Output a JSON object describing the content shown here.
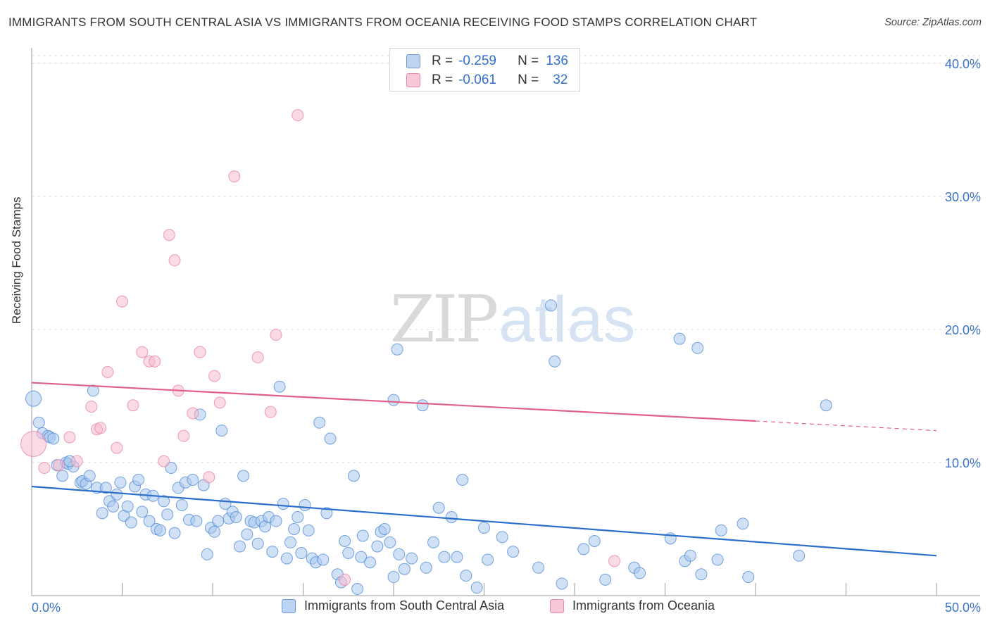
{
  "title": "IMMIGRANTS FROM SOUTH CENTRAL ASIA VS IMMIGRANTS FROM OCEANIA RECEIVING FOOD STAMPS CORRELATION CHART",
  "source": "Source: ZipAtlas.com",
  "watermark": {
    "part1": "ZIP",
    "part2": "atlas"
  },
  "legend": {
    "r_label": "R =",
    "n_label": "N =",
    "blue": {
      "r": "-0.259",
      "n": "136"
    },
    "pink": {
      "r": "-0.061",
      "n": "32"
    }
  },
  "colors": {
    "blue": "#4a86d6",
    "blue_fill": "#a9c8ef",
    "blue_line": "#2a6dcc",
    "pink": "#e87fa0",
    "pink_fill": "#f6bcd0",
    "pink_line": "#e0608a",
    "tick_label": "#3b73c8"
  },
  "chart_data": {
    "type": "scatter",
    "title": "IMMIGRANTS FROM SOUTH CENTRAL ASIA VS IMMIGRANTS FROM OCEANIA RECEIVING FOOD STAMPS CORRELATION CHART",
    "xlabel": "",
    "ylabel": "Receiving Food Stamps",
    "xlim": [
      0,
      50
    ],
    "ylim": [
      0,
      41
    ],
    "x_tick_labels": [
      "0.0%",
      "50.0%"
    ],
    "y_ticks": [
      10,
      20,
      30,
      40
    ],
    "y_tick_labels": [
      "10.0%",
      "20.0%",
      "30.0%",
      "40.0%"
    ],
    "grid": "horizontal dashed",
    "legend_position": "top-center",
    "series": [
      {
        "name": "Immigrants from South Central Asia",
        "color": "blue",
        "trend": {
          "x": [
            0,
            50
          ],
          "y": [
            8.2,
            3.0
          ],
          "dashed_from": null
        },
        "points": [
          [
            0.1,
            14.8
          ],
          [
            0.4,
            13.0
          ],
          [
            0.6,
            12.2
          ],
          [
            0.9,
            12.0
          ],
          [
            1.0,
            11.9
          ],
          [
            1.2,
            11.8
          ],
          [
            1.4,
            9.8
          ],
          [
            1.7,
            9.0
          ],
          [
            1.9,
            10.0
          ],
          [
            2.0,
            9.9
          ],
          [
            2.3,
            9.7
          ],
          [
            2.7,
            8.5
          ],
          [
            2.8,
            8.6
          ],
          [
            3.0,
            8.4
          ],
          [
            3.2,
            9.0
          ],
          [
            3.4,
            15.4
          ],
          [
            3.6,
            8.1
          ],
          [
            3.9,
            6.2
          ],
          [
            4.1,
            8.1
          ],
          [
            4.3,
            7.1
          ],
          [
            4.5,
            6.7
          ],
          [
            4.7,
            7.6
          ],
          [
            4.9,
            8.5
          ],
          [
            5.1,
            6.0
          ],
          [
            5.3,
            6.7
          ],
          [
            5.5,
            5.5
          ],
          [
            5.7,
            8.2
          ],
          [
            5.9,
            8.7
          ],
          [
            6.1,
            6.3
          ],
          [
            6.3,
            7.6
          ],
          [
            6.5,
            5.6
          ],
          [
            6.7,
            7.5
          ],
          [
            6.9,
            5.0
          ],
          [
            7.1,
            4.9
          ],
          [
            7.3,
            7.1
          ],
          [
            7.5,
            6.1
          ],
          [
            7.7,
            9.6
          ],
          [
            7.9,
            4.7
          ],
          [
            8.1,
            8.1
          ],
          [
            8.3,
            6.8
          ],
          [
            8.5,
            8.5
          ],
          [
            8.7,
            5.7
          ],
          [
            8.9,
            8.7
          ],
          [
            9.1,
            5.6
          ],
          [
            9.3,
            13.6
          ],
          [
            9.5,
            8.3
          ],
          [
            9.7,
            3.1
          ],
          [
            9.9,
            5.1
          ],
          [
            10.1,
            4.8
          ],
          [
            10.3,
            5.6
          ],
          [
            10.5,
            12.4
          ],
          [
            10.7,
            6.9
          ],
          [
            10.9,
            5.8
          ],
          [
            11.1,
            6.3
          ],
          [
            11.3,
            5.9
          ],
          [
            11.5,
            3.7
          ],
          [
            11.7,
            9.0
          ],
          [
            11.9,
            4.6
          ],
          [
            12.1,
            5.6
          ],
          [
            12.3,
            5.5
          ],
          [
            12.5,
            3.9
          ],
          [
            12.7,
            5.6
          ],
          [
            12.9,
            5.2
          ],
          [
            13.1,
            5.9
          ],
          [
            13.3,
            3.3
          ],
          [
            13.5,
            5.6
          ],
          [
            13.7,
            15.7
          ],
          [
            13.9,
            6.9
          ],
          [
            14.1,
            2.8
          ],
          [
            14.3,
            4.0
          ],
          [
            14.5,
            5.0
          ],
          [
            14.7,
            5.9
          ],
          [
            14.9,
            3.2
          ],
          [
            15.1,
            6.8
          ],
          [
            15.3,
            4.9
          ],
          [
            15.5,
            2.8
          ],
          [
            15.7,
            2.5
          ],
          [
            15.9,
            13.0
          ],
          [
            16.1,
            2.7
          ],
          [
            16.3,
            6.2
          ],
          [
            16.5,
            11.8
          ],
          [
            16.9,
            1.6
          ],
          [
            17.1,
            1.0
          ],
          [
            17.3,
            4.1
          ],
          [
            17.5,
            3.2
          ],
          [
            17.8,
            9.0
          ],
          [
            18.0,
            0.5
          ],
          [
            18.3,
            4.5
          ],
          [
            18.2,
            2.9
          ],
          [
            18.7,
            2.5
          ],
          [
            19.1,
            3.7
          ],
          [
            19.3,
            4.8
          ],
          [
            19.5,
            5.0
          ],
          [
            19.8,
            4.0
          ],
          [
            20.0,
            14.7
          ],
          [
            20.2,
            18.5
          ],
          [
            20.0,
            1.4
          ],
          [
            20.3,
            3.1
          ],
          [
            20.6,
            2.0
          ],
          [
            21.0,
            2.8
          ],
          [
            21.6,
            14.3
          ],
          [
            21.8,
            2.1
          ],
          [
            22.2,
            4.0
          ],
          [
            22.5,
            6.6
          ],
          [
            22.8,
            2.9
          ],
          [
            23.2,
            5.9
          ],
          [
            23.5,
            2.9
          ],
          [
            23.8,
            8.7
          ],
          [
            24.0,
            1.5
          ],
          [
            24.6,
            0.6
          ],
          [
            25.0,
            5.1
          ],
          [
            25.2,
            2.7
          ],
          [
            26.0,
            4.4
          ],
          [
            26.6,
            3.3
          ],
          [
            28.0,
            2.1
          ],
          [
            28.7,
            21.8
          ],
          [
            28.9,
            17.6
          ],
          [
            29.3,
            0.9
          ],
          [
            30.5,
            3.5
          ],
          [
            31.1,
            4.1
          ],
          [
            31.7,
            1.2
          ],
          [
            33.3,
            2.1
          ],
          [
            33.6,
            1.7
          ],
          [
            35.3,
            4.3
          ],
          [
            35.8,
            19.3
          ],
          [
            36.1,
            2.6
          ],
          [
            36.4,
            3.0
          ],
          [
            36.8,
            18.6
          ],
          [
            37.0,
            1.6
          ],
          [
            37.9,
            2.7
          ],
          [
            38.1,
            4.9
          ],
          [
            39.3,
            5.4
          ],
          [
            39.6,
            1.4
          ],
          [
            42.4,
            3.0
          ],
          [
            43.9,
            14.3
          ],
          [
            2.1,
            10.1
          ]
        ]
      },
      {
        "name": "Immigrants from Oceania",
        "color": "pink",
        "trend": {
          "x": [
            0,
            50
          ],
          "y": [
            16.0,
            12.4
          ],
          "dashed_from": 40.0
        },
        "points": [
          [
            0.1,
            11.4
          ],
          [
            0.7,
            9.6
          ],
          [
            1.5,
            9.8
          ],
          [
            2.1,
            11.9
          ],
          [
            2.5,
            10.1
          ],
          [
            3.3,
            14.2
          ],
          [
            3.6,
            12.5
          ],
          [
            3.8,
            12.6
          ],
          [
            4.2,
            16.8
          ],
          [
            4.7,
            11.1
          ],
          [
            5.0,
            22.1
          ],
          [
            5.6,
            14.3
          ],
          [
            6.1,
            18.3
          ],
          [
            6.5,
            17.6
          ],
          [
            6.8,
            17.6
          ],
          [
            7.3,
            10.1
          ],
          [
            7.6,
            27.1
          ],
          [
            7.9,
            25.2
          ],
          [
            8.1,
            15.4
          ],
          [
            8.4,
            12.0
          ],
          [
            8.9,
            13.7
          ],
          [
            9.3,
            18.3
          ],
          [
            9.8,
            8.9
          ],
          [
            10.1,
            16.5
          ],
          [
            10.4,
            14.5
          ],
          [
            11.2,
            31.5
          ],
          [
            12.5,
            17.9
          ],
          [
            13.2,
            13.8
          ],
          [
            13.5,
            19.6
          ],
          [
            14.7,
            36.1
          ],
          [
            17.3,
            1.2
          ],
          [
            32.2,
            2.6
          ]
        ]
      }
    ]
  },
  "bottom_legend": {
    "blue_label": "Immigrants from South Central Asia",
    "pink_label": "Immigrants from Oceania"
  }
}
